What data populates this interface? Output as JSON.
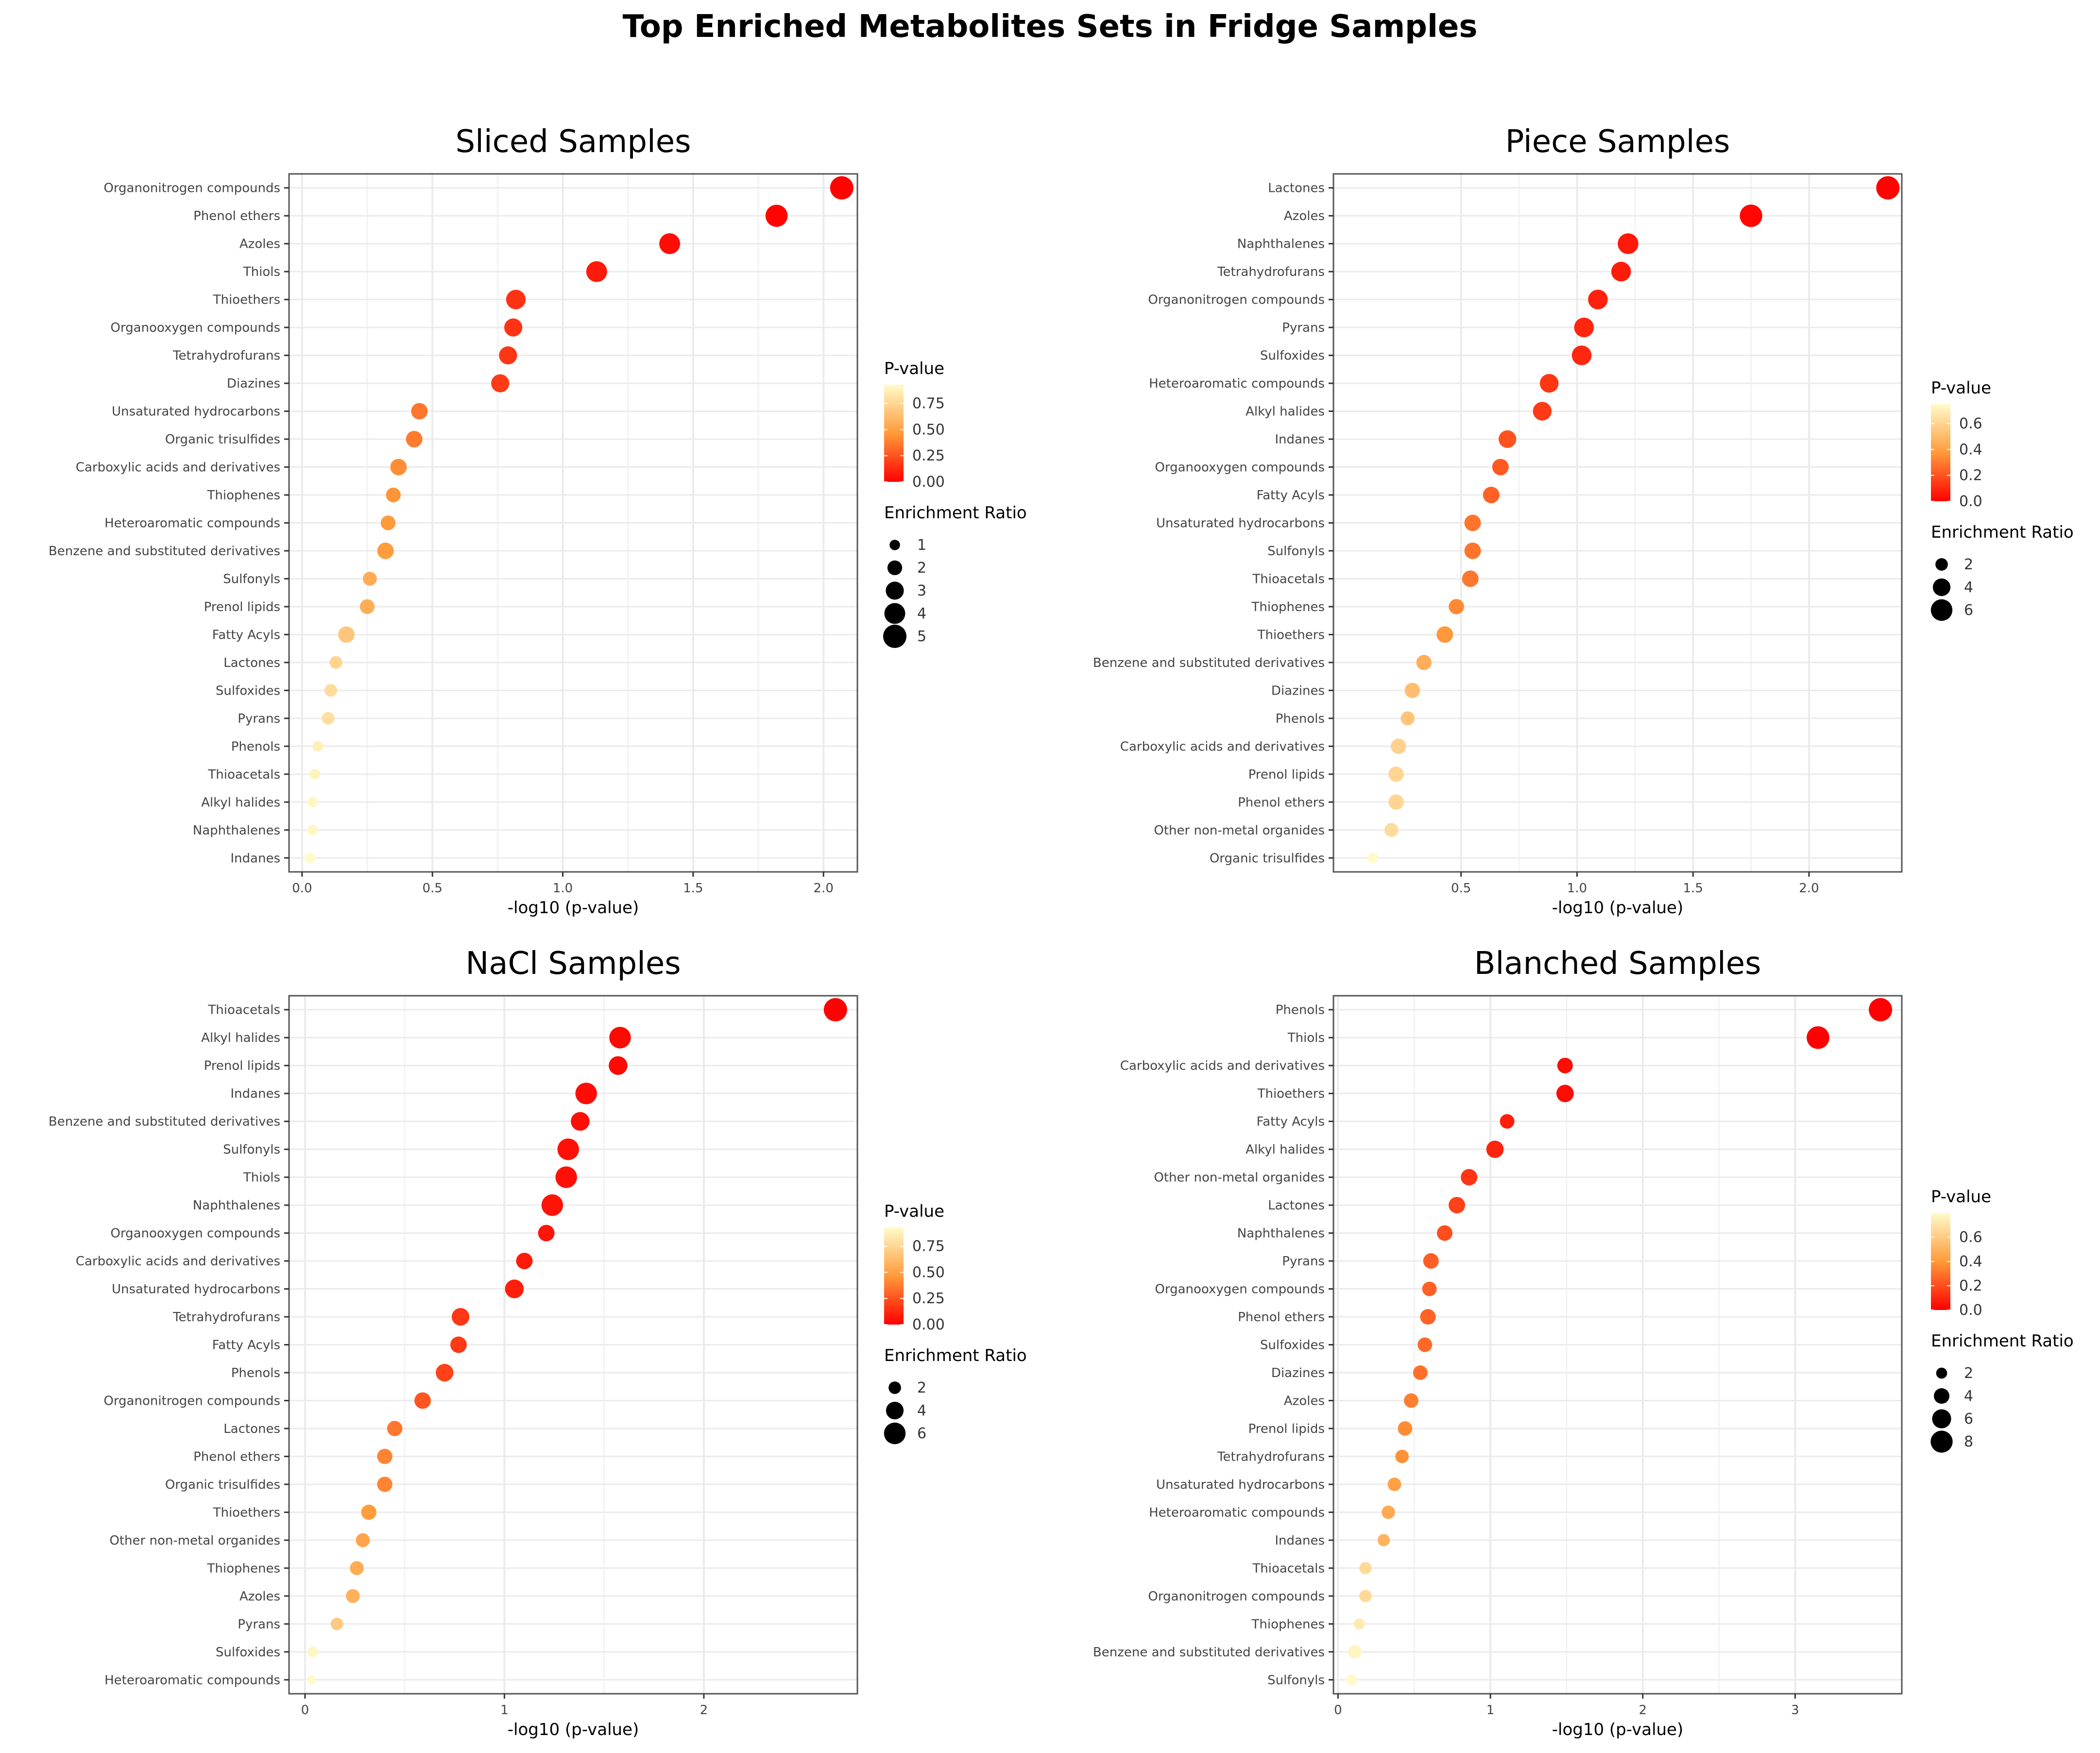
{
  "figure_title": "Top Enriched Metabolites Sets in Fridge Samples",
  "colors": {
    "low_p": "#ff0000",
    "mid_p": "#ff9a3a",
    "high_p": "#fffbc9",
    "panel_border": "#555555",
    "grid": "#ebebeb"
  },
  "chart_data": [
    {
      "type": "scatter",
      "title": "Sliced Samples",
      "xlabel": "-log10 (p-value)",
      "ylabel": "",
      "xlim": [
        -0.05,
        2.13
      ],
      "xticks": [
        0.0,
        0.5,
        1.0,
        1.5,
        2.0
      ],
      "xtick_labels": [
        "0.0",
        "0.5",
        "1.0",
        "1.5",
        "2.0"
      ],
      "categories": [
        "Organonitrogen compounds",
        "Phenol ethers",
        "Azoles",
        "Thiols",
        "Thioethers",
        "Organooxygen compounds",
        "Tetrahydrofurans",
        "Diazines",
        "Unsaturated hydrocarbons",
        "Organic trisulfides",
        "Carboxylic acids and derivatives",
        "Thiophenes",
        "Heteroaromatic compounds",
        "Benzene and substituted derivatives",
        "Sulfonyls",
        "Prenol lipids",
        "Fatty Acyls",
        "Lactones",
        "Sulfoxides",
        "Pyrans",
        "Phenols",
        "Thioacetals",
        "Alkyl halides",
        "Naphthalenes",
        "Indanes"
      ],
      "x": [
        2.07,
        1.82,
        1.41,
        1.13,
        0.82,
        0.81,
        0.79,
        0.76,
        0.45,
        0.43,
        0.37,
        0.35,
        0.33,
        0.32,
        0.26,
        0.25,
        0.17,
        0.13,
        0.11,
        0.1,
        0.06,
        0.05,
        0.04,
        0.04,
        0.03
      ],
      "enrichment_ratio": [
        5,
        4.5,
        4,
        4,
        3.5,
        3,
        3,
        3,
        2.5,
        2.5,
        2.5,
        2,
        2,
        2.5,
        1.8,
        2,
        2.5,
        1.5,
        1.5,
        1.5,
        1,
        1,
        1,
        1,
        1
      ],
      "pval_legend": {
        "title": "P-value",
        "ticks": [
          0.0,
          0.25,
          0.5,
          0.75
        ],
        "tick_labels": [
          "0.00",
          "0.25",
          "0.50",
          "0.75"
        ],
        "max": 0.93
      },
      "size_legend": {
        "title": "Enrichment Ratio",
        "values": [
          1,
          2,
          3,
          4,
          5
        ],
        "labels": [
          "1",
          "2",
          "3",
          "4",
          "5"
        ],
        "max": 5
      }
    },
    {
      "type": "scatter",
      "title": "Piece Samples",
      "xlabel": "-log10 (p-value)",
      "ylabel": "",
      "xlim": [
        -0.05,
        2.4
      ],
      "xticks": [
        0.5,
        1.0,
        1.5,
        2.0
      ],
      "xtick_labels": [
        "0.5",
        "1.0",
        "1.5",
        "2.0"
      ],
      "categories": [
        "Lactones",
        "Azoles",
        "Naphthalenes",
        "Tetrahydrofurans",
        "Organonitrogen compounds",
        "Pyrans",
        "Sulfoxides",
        "Heteroaromatic compounds",
        "Alkyl halides",
        "Indanes",
        "Organooxygen compounds",
        "Fatty Acyls",
        "Unsaturated hydrocarbons",
        "Sulfonyls",
        "Thioacetals",
        "Thiophenes",
        "Thioethers",
        "Benzene and substituted derivatives",
        "Diazines",
        "Phenols",
        "Carboxylic acids and derivatives",
        "Prenol lipids",
        "Phenol ethers",
        "Other non-metal organides",
        "Organic trisulfides"
      ],
      "x": [
        2.34,
        1.75,
        1.22,
        1.19,
        1.09,
        1.03,
        1.02,
        0.88,
        0.85,
        0.7,
        0.67,
        0.63,
        0.55,
        0.55,
        0.54,
        0.48,
        0.43,
        0.34,
        0.29,
        0.27,
        0.23,
        0.22,
        0.22,
        0.2,
        0.12
      ],
      "enrichment_ratio": [
        7,
        6.5,
        5.5,
        5,
        5,
        5,
        5,
        4.5,
        4.5,
        4,
        3.5,
        3.5,
        3.5,
        3.5,
        3.5,
        3,
        3.5,
        3,
        3,
        2.5,
        3,
        3,
        3,
        2.5,
        1.5
      ],
      "pval_legend": {
        "title": "P-value",
        "ticks": [
          0.0,
          0.2,
          0.4,
          0.6
        ],
        "tick_labels": [
          "0.0",
          "0.2",
          "0.4",
          "0.6"
        ],
        "max": 0.75
      },
      "size_legend": {
        "title": "Enrichment Ratio",
        "values": [
          2,
          4,
          6
        ],
        "labels": [
          "2",
          "4",
          "6"
        ],
        "max": 7
      }
    },
    {
      "type": "scatter",
      "title": "NaCl Samples",
      "xlabel": "-log10 (p-value)",
      "ylabel": "",
      "xlim": [
        -0.08,
        2.77
      ],
      "xticks": [
        0,
        1,
        2
      ],
      "xtick_labels": [
        "0",
        "1",
        "2"
      ],
      "categories": [
        "Thioacetals",
        "Alkyl halides",
        "Prenol lipids",
        "Indanes",
        "Benzene and substituted derivatives",
        "Sulfonyls",
        "Thiols",
        "Naphthalenes",
        "Organooxygen compounds",
        "Carboxylic acids and derivatives",
        "Unsaturated hydrocarbons",
        "Tetrahydrofurans",
        "Fatty Acyls",
        "Phenols",
        "Organonitrogen compounds",
        "Lactones",
        "Phenol ethers",
        "Organic trisulfides",
        "Thioethers",
        "Other non-metal organides",
        "Thiophenes",
        "Azoles",
        "Pyrans",
        "Sulfoxides",
        "Heteroaromatic compounds"
      ],
      "x": [
        2.66,
        1.58,
        1.57,
        1.41,
        1.38,
        1.32,
        1.31,
        1.24,
        1.21,
        1.1,
        1.05,
        0.78,
        0.77,
        0.7,
        0.59,
        0.45,
        0.4,
        0.4,
        0.32,
        0.29,
        0.26,
        0.24,
        0.16,
        0.04,
        0.03
      ],
      "enrichment_ratio": [
        7,
        6,
        4.5,
        6,
        4.5,
        6,
        6,
        6,
        3.5,
        3.5,
        4.5,
        4,
        3.5,
        4,
        3.5,
        3,
        3,
        3,
        3,
        2.5,
        2.5,
        2.5,
        2,
        1.5,
        1
      ],
      "pval_legend": {
        "title": "P-value",
        "ticks": [
          0.0,
          0.25,
          0.5,
          0.75
        ],
        "tick_labels": [
          "0.00",
          "0.25",
          "0.50",
          "0.75"
        ],
        "max": 0.93
      },
      "size_legend": {
        "title": "Enrichment Ratio",
        "values": [
          2,
          4,
          6
        ],
        "labels": [
          "2",
          "4",
          "6"
        ],
        "max": 7
      }
    },
    {
      "type": "scatter",
      "title": "Blanched Samples",
      "xlabel": "-log10 (p-value)",
      "ylabel": "",
      "xlim": [
        -0.03,
        3.7
      ],
      "xticks": [
        0,
        1,
        2,
        3
      ],
      "xtick_labels": [
        "0",
        "1",
        "2",
        "3"
      ],
      "categories": [
        "Phenols",
        "Thiols",
        "Carboxylic acids and derivatives",
        "Thioethers",
        "Fatty Acyls",
        "Alkyl halides",
        "Other non-metal organides",
        "Lactones",
        "Naphthalenes",
        "Pyrans",
        "Organooxygen compounds",
        "Phenol ethers",
        "Sulfoxides",
        "Diazines",
        "Azoles",
        "Prenol lipids",
        "Tetrahydrofurans",
        "Unsaturated hydrocarbons",
        "Heteroaromatic compounds",
        "Indanes",
        "Thioacetals",
        "Organonitrogen compounds",
        "Thiophenes",
        "Benzene and substituted derivatives",
        "Sulfonyls"
      ],
      "x": [
        3.56,
        3.15,
        1.49,
        1.49,
        1.11,
        1.03,
        0.86,
        0.78,
        0.7,
        0.61,
        0.6,
        0.59,
        0.57,
        0.54,
        0.48,
        0.44,
        0.42,
        0.37,
        0.33,
        0.3,
        0.18,
        0.18,
        0.14,
        0.11,
        0.09
      ],
      "enrichment_ratio": [
        9,
        8.5,
        4,
        5,
        3.5,
        5,
        4.5,
        4.5,
        4,
        4,
        3.5,
        4,
        3.5,
        3.5,
        3.5,
        3.5,
        3,
        3,
        3,
        2.5,
        2.5,
        2.5,
        2,
        3,
        2
      ],
      "pval_legend": {
        "title": "P-value",
        "ticks": [
          0.0,
          0.2,
          0.4,
          0.6
        ],
        "tick_labels": [
          "0.0",
          "0.2",
          "0.4",
          "0.6"
        ],
        "max": 0.8
      },
      "size_legend": {
        "title": "Enrichment Ratio",
        "values": [
          2,
          4,
          6,
          8
        ],
        "labels": [
          "2",
          "4",
          "6",
          "8"
        ],
        "max": 9
      }
    }
  ]
}
